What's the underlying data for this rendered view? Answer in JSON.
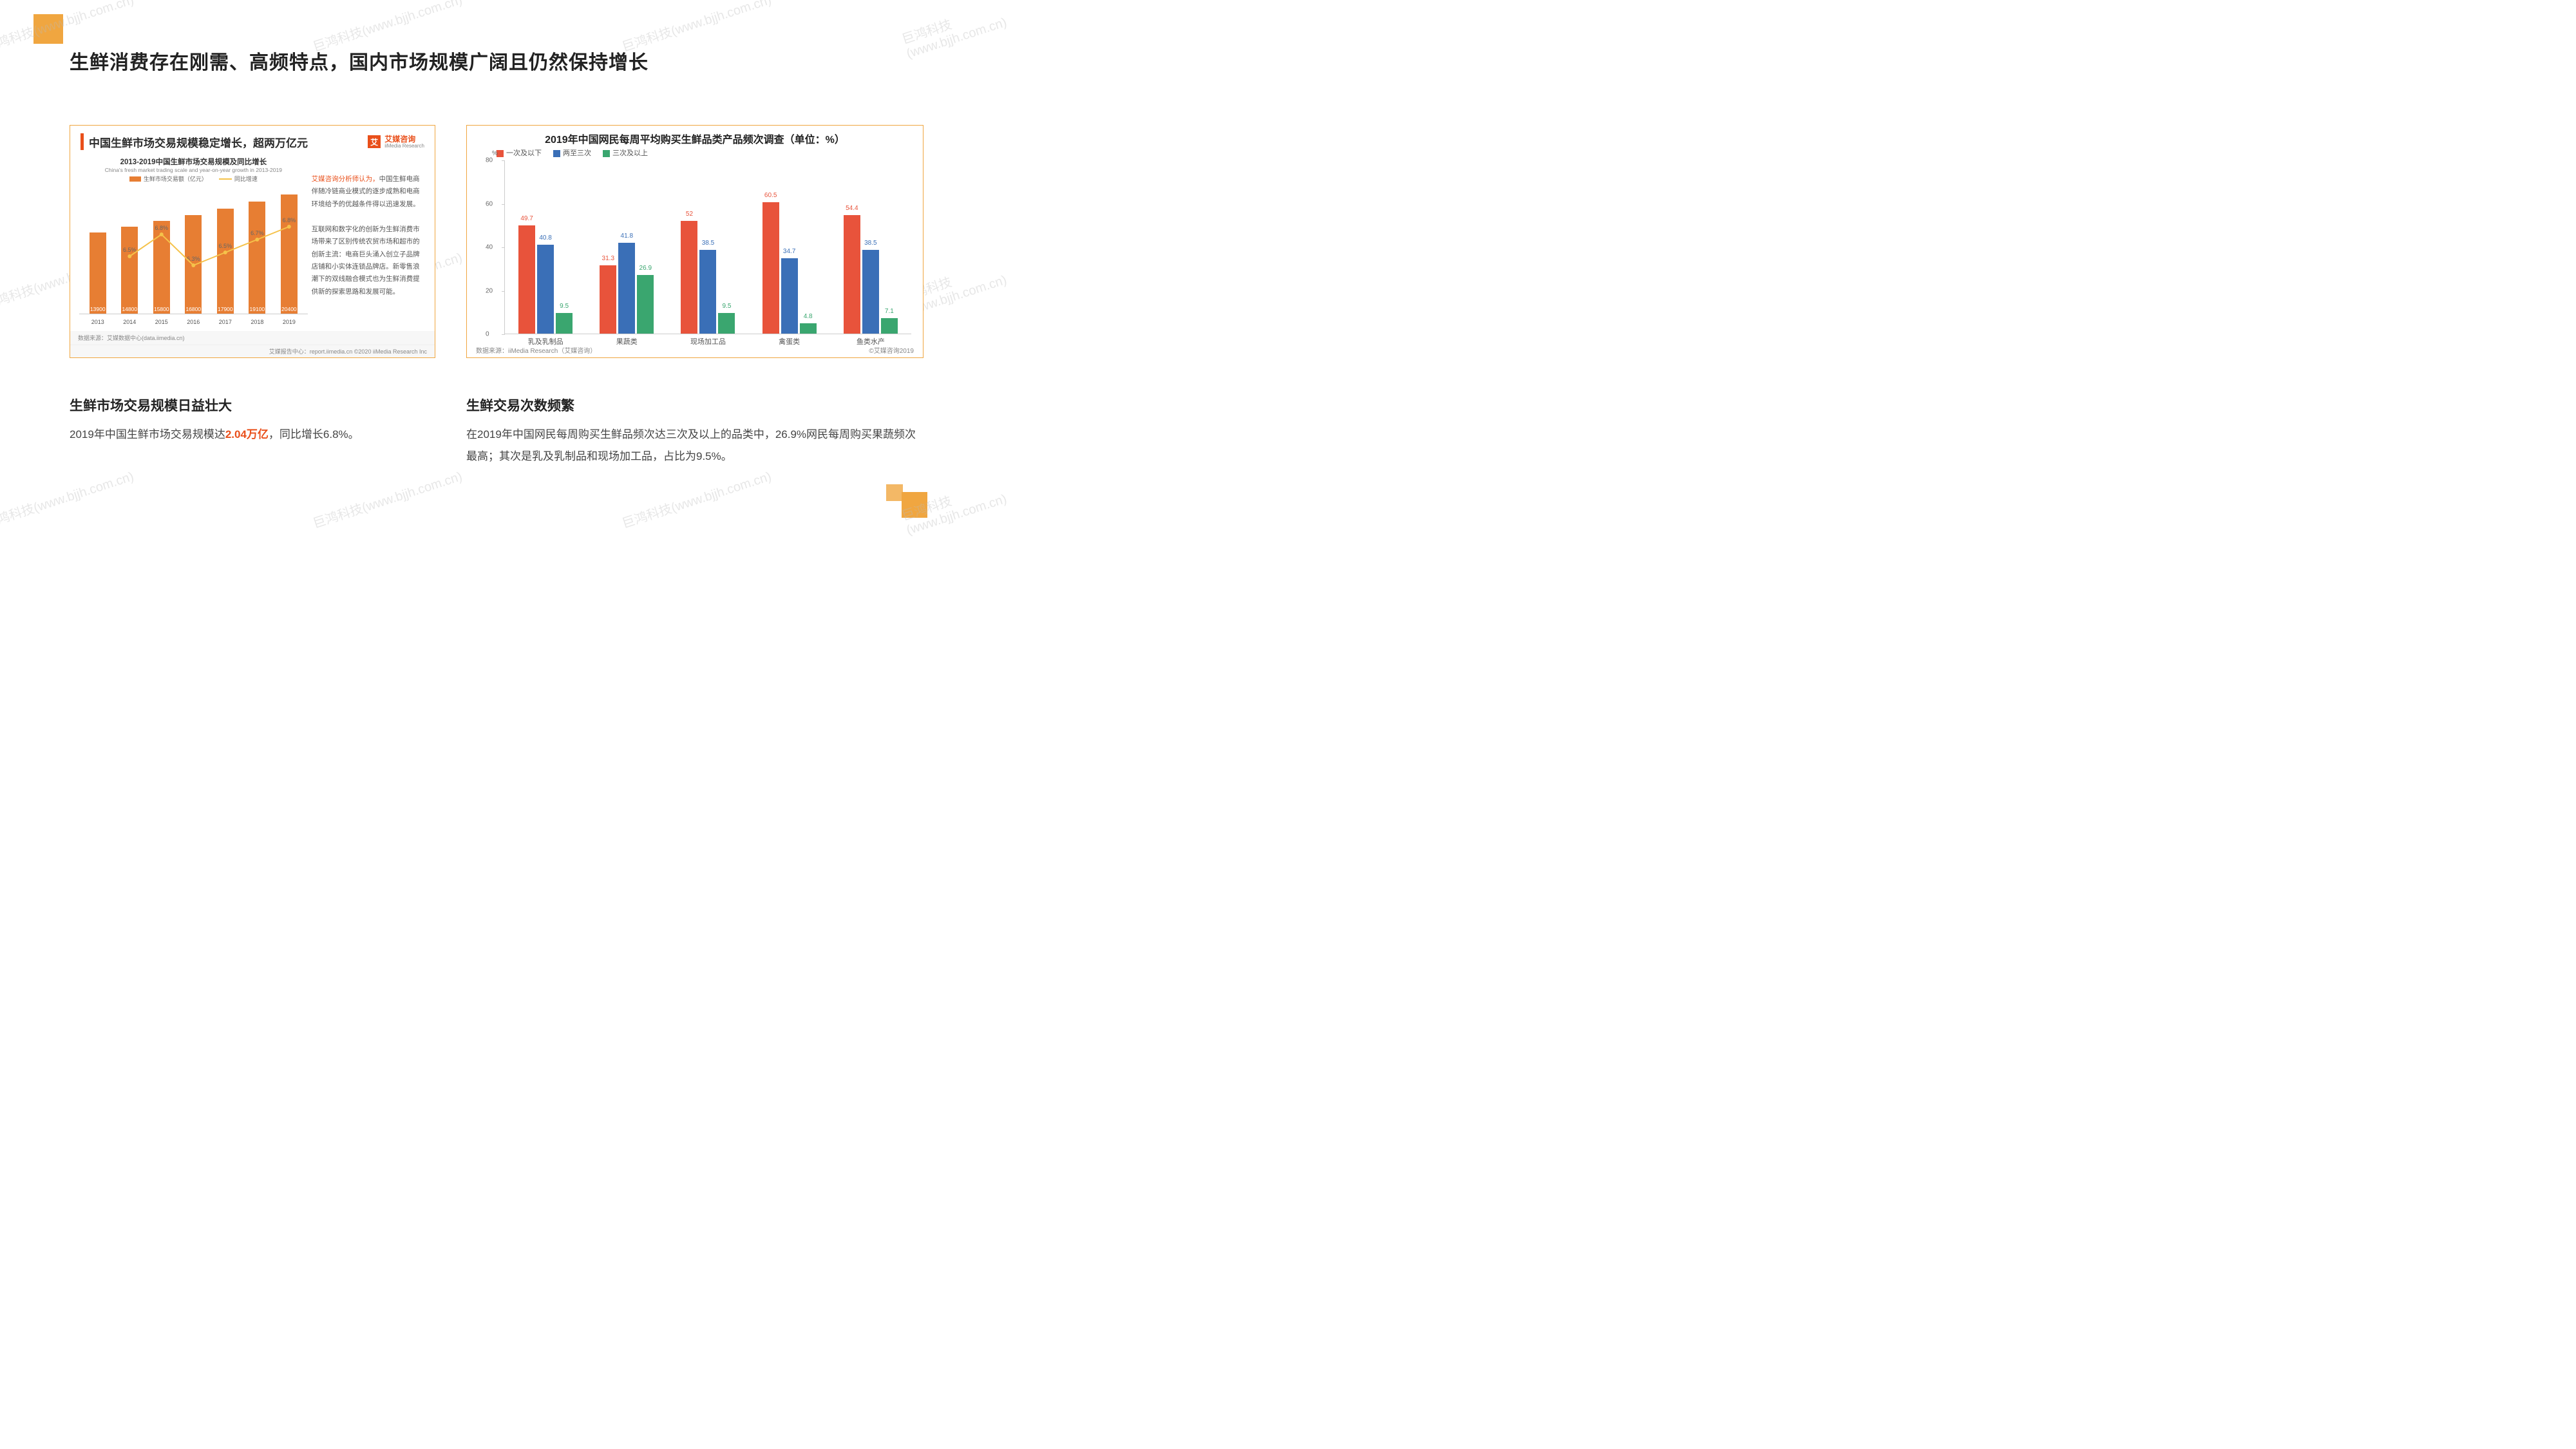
{
  "decor": {
    "color": "#f0a640"
  },
  "watermark": "巨鸿科技(www.bjjh.com.cn)",
  "slide_title": "生鲜消费存在刚需、高频特点，国内市场规模广阔且仍然保持增长",
  "chart_left": {
    "frame_title": "中国生鲜市场交易规模稳定增长，超两万亿元",
    "brand": "艾媒咨询",
    "brand_icon": "艾",
    "brand_sub": "iiMedia Research",
    "subtitle": "2013-2019中国生鲜市场交易规模及同比增长",
    "subtitle_en": "China's fresh market trading scale and year-on-year growth in 2013-2019",
    "legend_bar": "生鲜市场交易额（亿元）",
    "legend_line": "同比增速",
    "years": [
      "2013",
      "2014",
      "2015",
      "2016",
      "2017",
      "2018",
      "2019"
    ],
    "values": [
      13900,
      14800,
      15800,
      16800,
      17900,
      19100,
      20400
    ],
    "growth": [
      null,
      "6.5%",
      "6.8%",
      "6.3%",
      "6.5%",
      "6.7%",
      "6.8%"
    ],
    "growth_y": [
      null,
      0.55,
      0.38,
      0.62,
      0.52,
      0.42,
      0.32
    ],
    "ymax": 22000,
    "bar_color": "#e77e33",
    "line_color": "#f5c24a",
    "note_prefix": "艾媒咨询分析师认为，",
    "note_body": "中国生鲜电商伴随冷链商业模式的逐步成熟和电商环境给予的优越条件得以迅速发展。\n互联网和数字化的创新为生鲜消费市场带来了区别传统农贸市场和超市的创新主流：电商巨头涌入创立子品牌店铺和小实体连锁品牌店。新零售浪潮下的双线融合模式也为生鲜消费提供新的探索思路和发展可能。",
    "footer_src": "数据来源：艾媒数据中心(data.iimedia.cn)",
    "footer_right": "艾媒报告中心：report.iimedia.cn   ©2020 iiMedia Research Inc"
  },
  "chart_right": {
    "title": "2019年中国网民每周平均购买生鲜品类产品频次调查（单位：%）",
    "series": [
      {
        "name": "一次及以下",
        "color": "#e8533b"
      },
      {
        "name": "两至三次",
        "color": "#3a6fb7"
      },
      {
        "name": "三次及以上",
        "color": "#3aa66f"
      }
    ],
    "ymax": 80,
    "ytick_step": 20,
    "y_unit": "%",
    "categories": [
      "乳及乳制品",
      "果蔬类",
      "现场加工品",
      "禽蛋类",
      "鱼类水产"
    ],
    "data": [
      [
        49.7,
        40.8,
        9.5
      ],
      [
        31.3,
        41.8,
        26.9
      ],
      [
        52.0,
        38.5,
        9.5
      ],
      [
        60.5,
        34.7,
        4.8
      ],
      [
        54.4,
        38.5,
        7.1
      ]
    ],
    "footer_left": "数据来源：iiMedia Research（艾媒咨询）",
    "footer_right": "©艾媒咨询2019"
  },
  "text_left": {
    "heading": "生鲜市场交易规模日益壮大",
    "p_before": "2019年中国生鲜市场交易规模达",
    "p_em": "2.04万亿",
    "p_after": "，同比增长6.8%。"
  },
  "text_right": {
    "heading": "生鲜交易次数频繁",
    "body": "在2019年中国网民每周购买生鲜品频次达三次及以上的品类中，26.9%网民每周购买果蔬频次最高；其次是乳及乳制品和现场加工品，占比为9.5%。"
  }
}
